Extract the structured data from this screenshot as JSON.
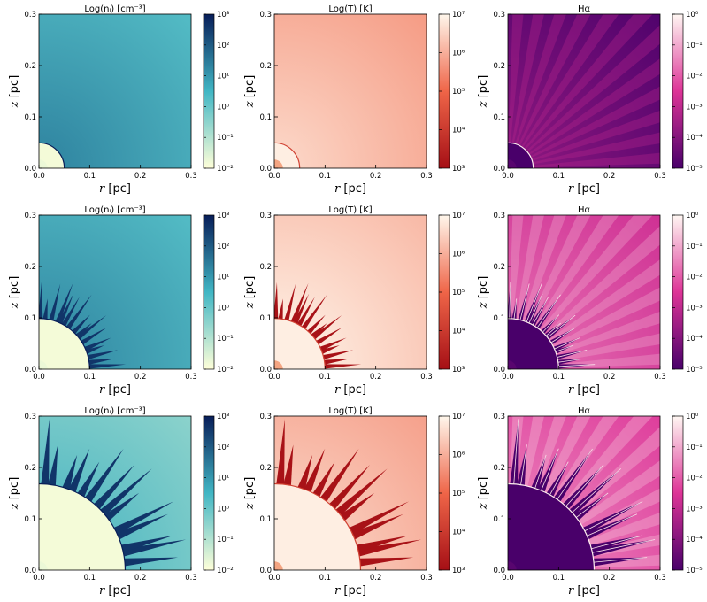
{
  "chart_data": {
    "type": "heatmap",
    "description_rows": [
      "row-1",
      "row-2",
      "row-3"
    ],
    "xlabel_var": "r",
    "ylabel_var": "z",
    "axis_unit": " [pc]",
    "xlim": [
      0,
      0.3
    ],
    "ylim": [
      0,
      0.3
    ],
    "ticks": [
      "0.0",
      "0.1",
      "0.2",
      "0.3"
    ],
    "columns": [
      {
        "title": "Log(nᵢ) [cm⁻³]",
        "colormap": "YlGnBu",
        "colorbar_ticks": [
          "10⁻²",
          "10⁻¹",
          "10⁰",
          "10¹",
          "10²",
          "10³"
        ],
        "colors": {
          "low": "#ffffd9",
          "mid": "#41b6c4",
          "high": "#081d58"
        }
      },
      {
        "title": "Log(T) [K]",
        "colormap": "OrRd",
        "colorbar_ticks": [
          "10³",
          "10⁴",
          "10⁵",
          "10⁶",
          "10⁷"
        ],
        "colors": {
          "low": "#a50f15",
          "mid": "#ef6548",
          "high": "#fff7ec"
        }
      },
      {
        "title": "Hα",
        "colormap": "RdPu",
        "colorbar_ticks": [
          "10⁻⁵",
          "10⁻⁴",
          "10⁻³",
          "10⁻²",
          "10⁻¹",
          "10⁰"
        ],
        "colors": {
          "low": "#49006a",
          "mid": "#dd3497",
          "high": "#fff7f3"
        }
      }
    ],
    "rows": [
      {
        "front_radius_pc": 0.05,
        "finger_length_pc": 0.0,
        "finger_count": 0,
        "background_level": [
          0.55,
          0.78,
          0.12
        ]
      },
      {
        "front_radius_pc": 0.1,
        "finger_length_pc": 0.06,
        "finger_count": 16,
        "background_level": [
          0.55,
          0.88,
          0.55
        ]
      },
      {
        "front_radius_pc": 0.17,
        "finger_length_pc": 0.1,
        "finger_count": 14,
        "background_level": [
          0.4,
          0.8,
          0.62
        ]
      }
    ]
  }
}
